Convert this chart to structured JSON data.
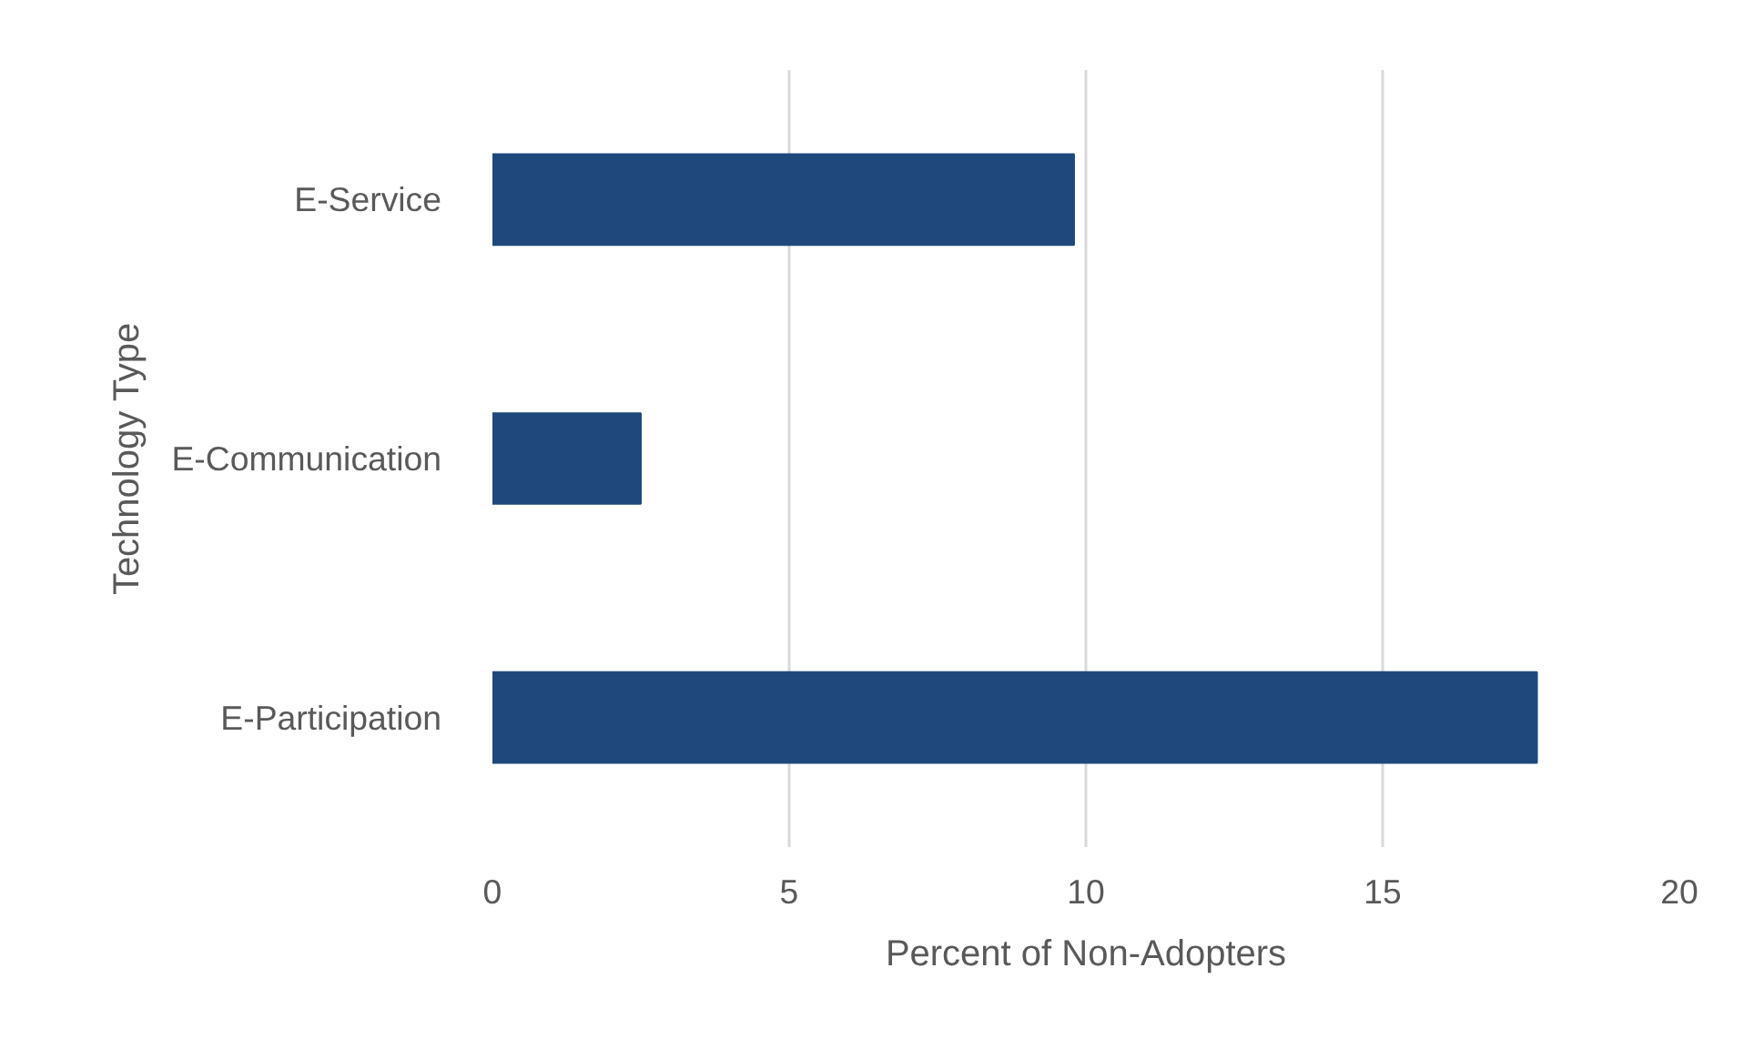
{
  "chart_data": {
    "type": "bar",
    "orientation": "horizontal",
    "categories": [
      "E-Service",
      "E-Communication",
      "E-Participation"
    ],
    "values": [
      9.8,
      2.5,
      17.6
    ],
    "color": "#1f497d",
    "xlabel": "Percent of Non-Adopters",
    "ylabel": "Technology Type",
    "xlim": [
      0,
      20
    ],
    "xticks": [
      0,
      5,
      10,
      15,
      20
    ],
    "grid": "x"
  }
}
